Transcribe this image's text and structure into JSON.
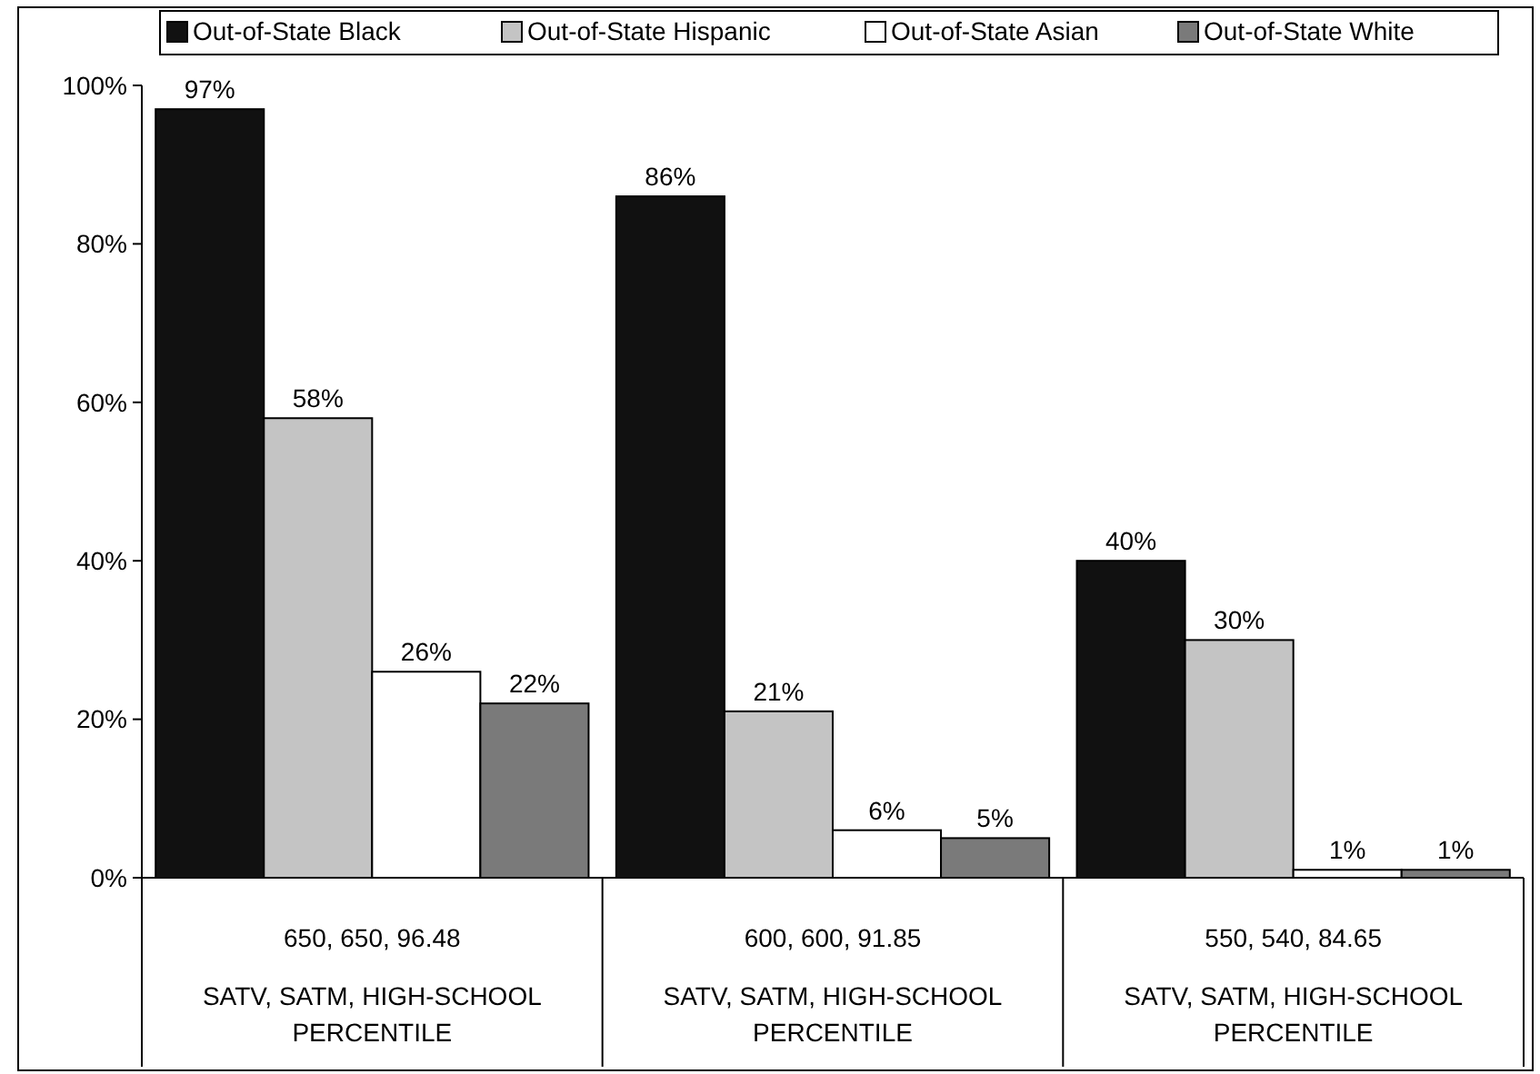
{
  "chart_data": {
    "type": "bar",
    "categories": [
      "650, 650, 96.48\nSATV, SATM, HIGH-SCHOOL PERCENTILE",
      "600, 600, 91.85\nSATV, SATM, HIGH-SCHOOL PERCENTILE",
      "550, 540, 84.65\nSATV, SATM, HIGH-SCHOOL PERCENTILE"
    ],
    "series": [
      {
        "name": "Out-of-State Black",
        "color": "#111111",
        "values": [
          97,
          86,
          40
        ],
        "value_labels": [
          "97%",
          "86%",
          "40%"
        ]
      },
      {
        "name": "Out-of-State Hispanic",
        "color": "#c4c4c4",
        "values": [
          58,
          21,
          30
        ],
        "value_labels": [
          "58%",
          "21%",
          "30%"
        ]
      },
      {
        "name": "Out-of-State Asian",
        "color": "#ffffff",
        "values": [
          26,
          6,
          1
        ],
        "value_labels": [
          "26%",
          "6%",
          "1%"
        ]
      },
      {
        "name": "Out-of-State White",
        "color": "#7a7a7a",
        "values": [
          22,
          5,
          1
        ],
        "value_labels": [
          "22%",
          "5%",
          "1%"
        ]
      }
    ],
    "ylim": [
      0,
      100
    ],
    "yticks": [
      {
        "value": 0,
        "label": "0%"
      },
      {
        "value": 20,
        "label": "20%"
      },
      {
        "value": 40,
        "label": "40%"
      },
      {
        "value": 60,
        "label": "60%"
      },
      {
        "value": 80,
        "label": "80%"
      },
      {
        "value": 100,
        "label": "100%"
      }
    ],
    "legend": "top",
    "grid": false
  }
}
